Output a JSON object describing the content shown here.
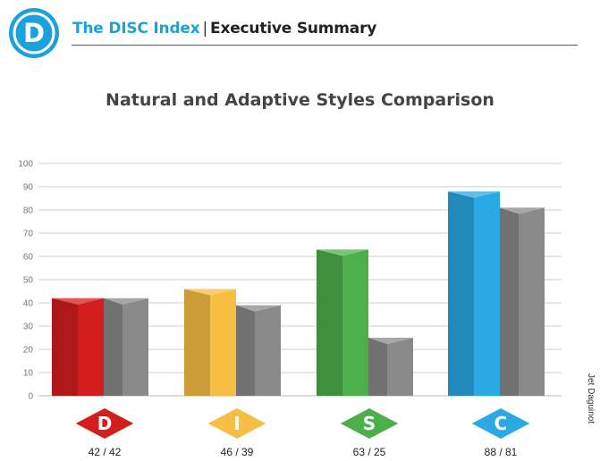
{
  "header": {
    "logo_letter": "D",
    "brand": "The DISC Index",
    "separator": "|",
    "section": "Executive Summary"
  },
  "side_credit": "Jet Daguinot",
  "colors": {
    "brand": "#1ba1dd",
    "D": "#d31e1e",
    "I": "#f7be44",
    "S": "#4cb04a",
    "C": "#2aa9e4",
    "adaptive": "#8a8a8a",
    "grid": "#cccccc"
  },
  "chart_data": {
    "type": "bar",
    "title": "Natural and Adaptive Styles Comparison",
    "categories": [
      "D",
      "I",
      "S",
      "C"
    ],
    "category_labels": [
      "42 / 42",
      "46 / 39",
      "63 / 25",
      "88 / 81"
    ],
    "series": [
      {
        "values": [
          42,
          46,
          63,
          88
        ]
      },
      {
        "values": [
          42,
          39,
          25,
          81
        ]
      }
    ],
    "ylim": [
      0,
      100
    ],
    "yticks": [
      0,
      10,
      20,
      30,
      40,
      50,
      60,
      70,
      80,
      90,
      100
    ],
    "grid": true,
    "xlabel": "",
    "ylabel": ""
  }
}
